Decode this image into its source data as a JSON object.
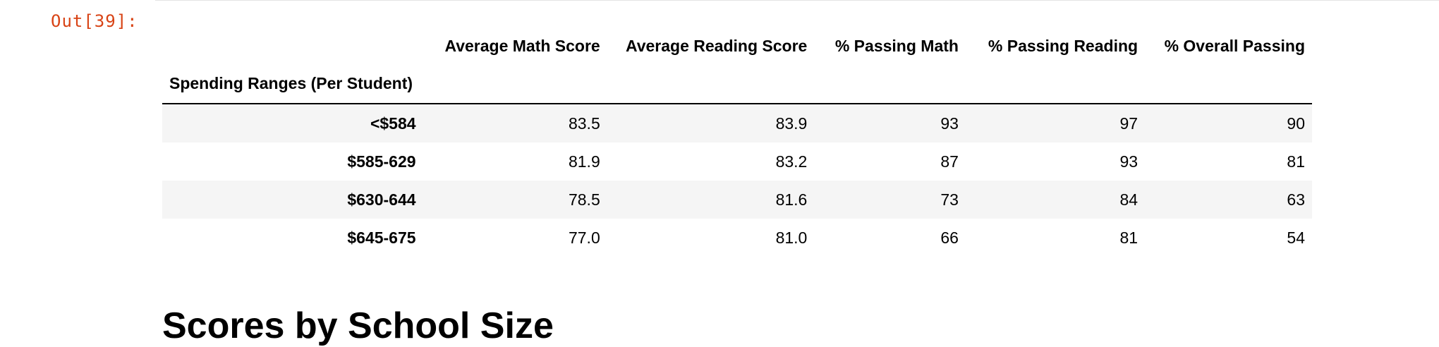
{
  "output_prompt": "Out[39]:",
  "dataframe": {
    "index_name": "Spending Ranges (Per Student)",
    "columns": [
      "Average Math Score",
      "Average Reading Score",
      "% Passing Math",
      "% Passing Reading",
      "% Overall Passing"
    ],
    "rows": [
      {
        "index": "<$584",
        "values": [
          "83.5",
          "83.9",
          "93",
          "97",
          "90"
        ]
      },
      {
        "index": "$585-629",
        "values": [
          "81.9",
          "83.2",
          "87",
          "93",
          "81"
        ]
      },
      {
        "index": "$630-644",
        "values": [
          "78.5",
          "81.6",
          "73",
          "84",
          "63"
        ]
      },
      {
        "index": "$645-675",
        "values": [
          "77.0",
          "81.0",
          "66",
          "81",
          "54"
        ]
      }
    ]
  },
  "next_section": {
    "heading": "Scores by School Size"
  },
  "colors": {
    "prompt": "#d84315",
    "stripe": "#f5f5f5",
    "rule": "#000000"
  }
}
